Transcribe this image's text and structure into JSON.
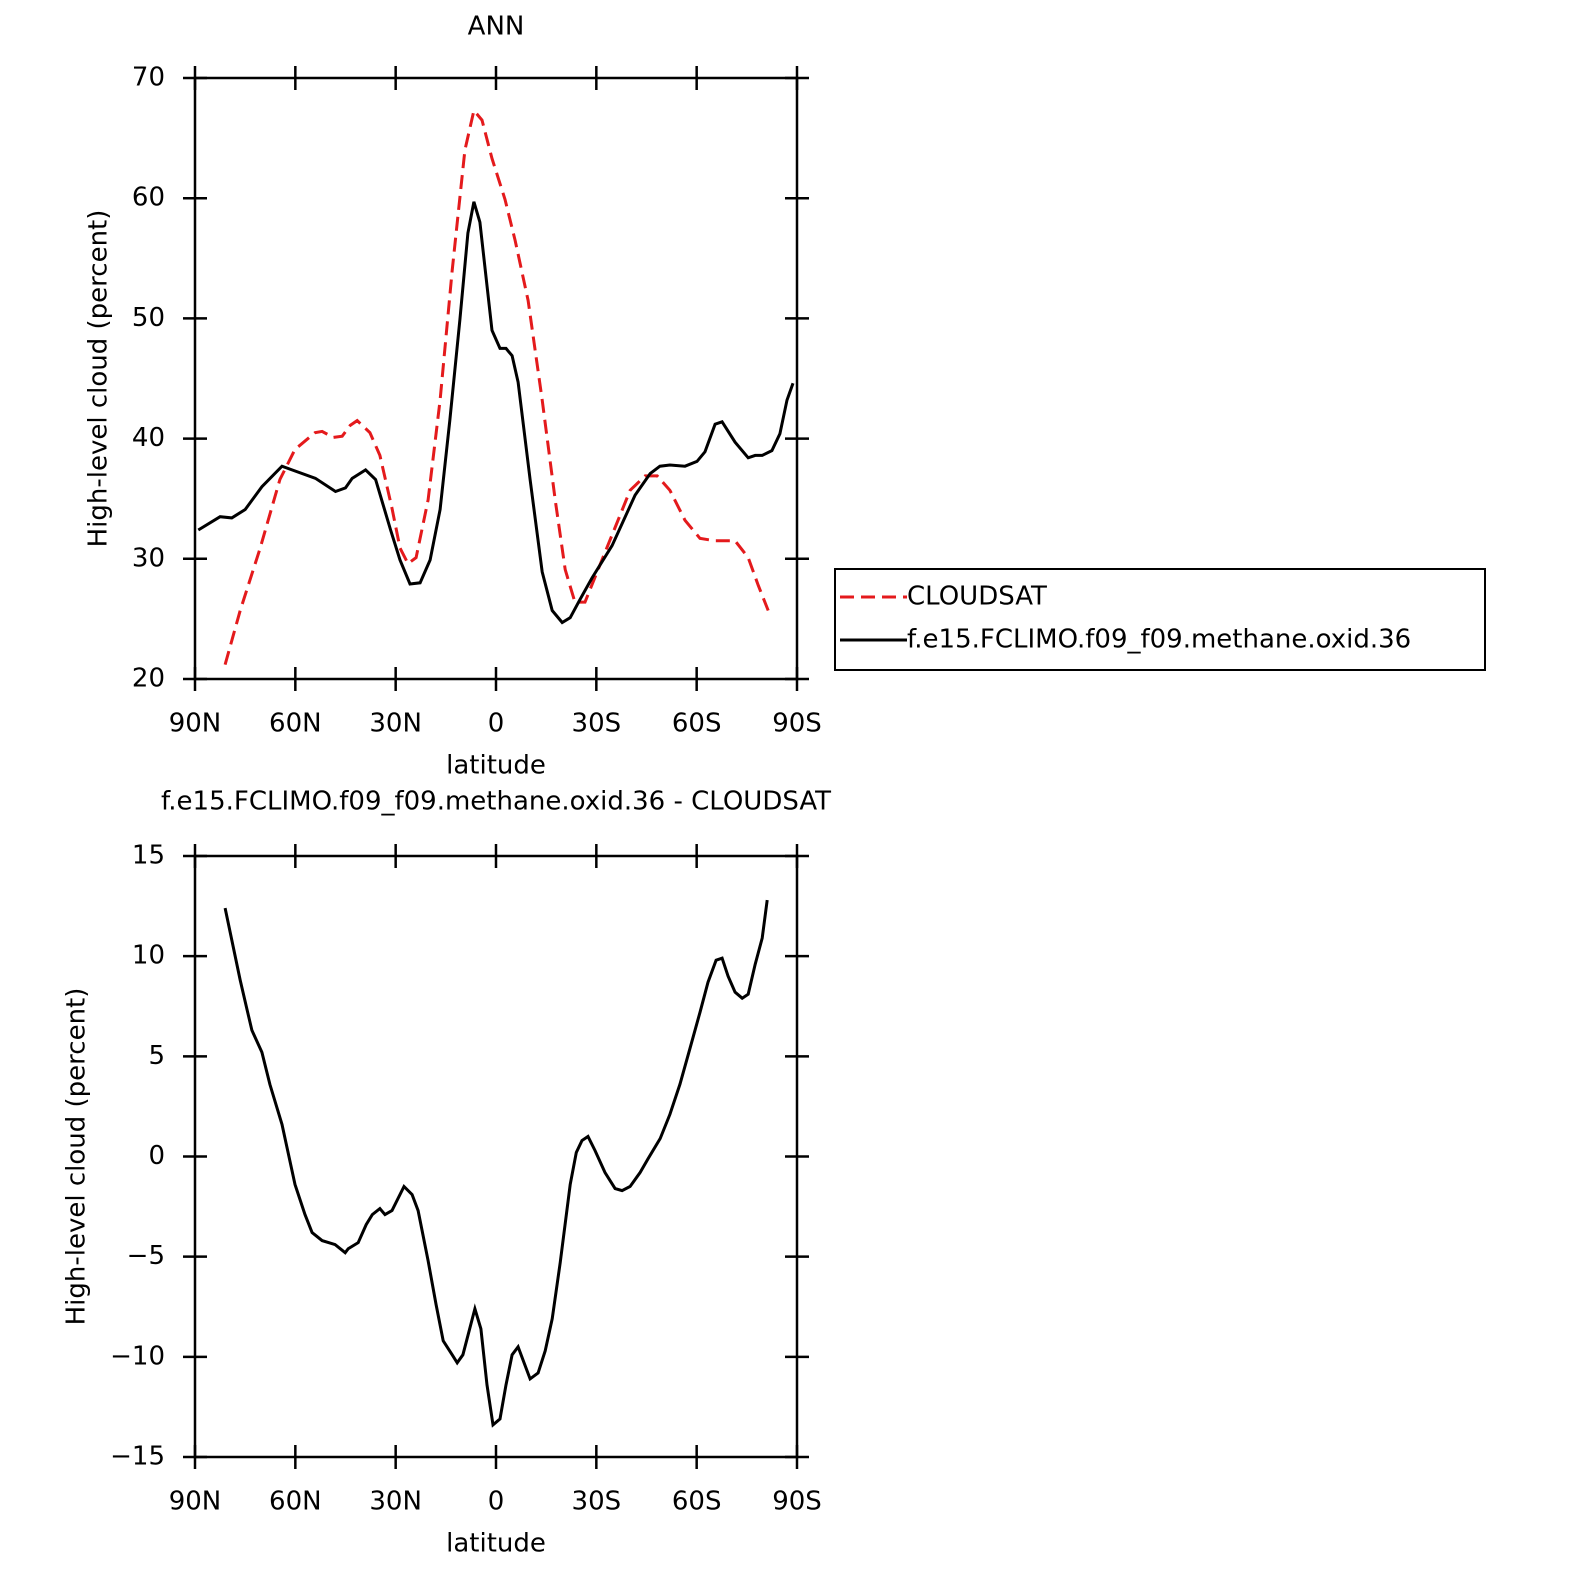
{
  "chart_data": [
    {
      "type": "line",
      "title": "ANN",
      "xlabel": "latitude",
      "ylabel": "High-level cloud (percent)",
      "xlim": [
        90,
        -90
      ],
      "xticks": [
        {
          "value": 90,
          "label": "90N"
        },
        {
          "value": 60,
          "label": "60N"
        },
        {
          "value": 30,
          "label": "30N"
        },
        0,
        {
          "value": -30,
          "label": "30S"
        },
        {
          "value": -60,
          "label": "60S"
        },
        {
          "value": -90,
          "label": "90S"
        }
      ],
      "ylim": [
        20,
        70
      ],
      "yticks": [
        20,
        30,
        40,
        50,
        60,
        70
      ],
      "legend": "right",
      "series": [
        {
          "name": "CLOUDSAT",
          "color": "#e41a1c",
          "line_style": "dashed",
          "x": [
            81,
            76.5,
            70.5,
            64.6,
            60.1,
            54.1,
            52,
            48.7,
            46,
            43.6,
            41.5,
            37.7,
            34.7,
            31.1,
            28.7,
            26.3,
            23.9,
            20.3,
            16.7,
            13.1,
            9.3,
            6.6,
            4.2,
            1.2,
            -2.7,
            -5.7,
            -9.6,
            -13.8,
            -17.7,
            -20.7,
            -23.6,
            -26.6,
            -31.1,
            -35.6,
            -40.1,
            -44.6,
            -48.2,
            -52,
            -56.5,
            -61,
            -65.5,
            -71.5,
            -75.4,
            -78.4,
            -81.4
          ],
          "values": [
            21.2,
            25.7,
            30.9,
            36.6,
            39.1,
            40.5,
            40.6,
            40.1,
            40.2,
            41.1,
            41.5,
            40.5,
            38.6,
            34.2,
            30.9,
            29.6,
            30.1,
            34.9,
            43.2,
            54.0,
            64.0,
            67.3,
            66.5,
            63.3,
            59.9,
            56.5,
            51.5,
            43.2,
            34.9,
            29.1,
            26.4,
            26.4,
            29.5,
            32.6,
            35.7,
            36.9,
            36.9,
            35.7,
            33.2,
            31.7,
            31.5,
            31.5,
            30.1,
            27.8,
            25.7
          ]
        },
        {
          "name": "f.e15.FCLIMO.f09_f09.methane.oxid.36",
          "color": "#000000",
          "line_style": "solid",
          "x": [
            89,
            82.5,
            79,
            75,
            70,
            64,
            61,
            54,
            48,
            45,
            43,
            39,
            36,
            31.5,
            28.7,
            25.7,
            22.7,
            19.7,
            16.7,
            13.8,
            10.8,
            8.4,
            6.6,
            4.8,
            1.2,
            -1.2,
            -3,
            -4.8,
            -6.6,
            -10.2,
            -13.8,
            -16.8,
            -19.8,
            -22.2,
            -25.1,
            -28.7,
            -34.7,
            -41.6,
            -46.1,
            -49,
            -52,
            -56.5,
            -60.1,
            -62.5,
            -65.5,
            -67.6,
            -71.5,
            -75.4,
            -77.5,
            -79.6,
            -82.5,
            -84.9,
            -87,
            -88.8
          ],
          "values": [
            32.4,
            33.5,
            33.4,
            34.1,
            36.0,
            37.7,
            37.4,
            36.7,
            35.6,
            35.9,
            36.7,
            37.4,
            36.6,
            32.4,
            29.9,
            27.9,
            28.0,
            29.9,
            34.1,
            41.5,
            49.9,
            57.1,
            59.7,
            58.0,
            49.0,
            47.5,
            47.5,
            46.9,
            44.7,
            36.6,
            28.9,
            25.7,
            24.7,
            25.1,
            26.6,
            28.4,
            31.1,
            35.3,
            37.1,
            37.7,
            37.8,
            37.7,
            38.1,
            38.9,
            41.2,
            41.4,
            39.7,
            38.4,
            38.6,
            38.6,
            39.0,
            40.4,
            43.2,
            44.6
          ]
        }
      ]
    },
    {
      "type": "line",
      "title": "f.e15.FCLIMO.f09_f09.methane.oxid.36 - CLOUDSAT",
      "xlabel": "latitude",
      "ylabel": "High-level cloud (percent)",
      "xlim": [
        90,
        -90
      ],
      "xticks": [
        {
          "value": 90,
          "label": "90N"
        },
        {
          "value": 60,
          "label": "60N"
        },
        {
          "value": 30,
          "label": "30N"
        },
        0,
        {
          "value": -30,
          "label": "30S"
        },
        {
          "value": -60,
          "label": "60S"
        },
        {
          "value": -90,
          "label": "90S"
        }
      ],
      "ylim": [
        -15,
        15
      ],
      "yticks": [
        {
          "value": -15,
          "label": "−15"
        },
        {
          "value": -10,
          "label": "−10"
        },
        {
          "value": -5,
          "label": "−5"
        },
        0,
        5,
        10,
        15
      ],
      "series": [
        {
          "color": "#000000",
          "line_style": "solid",
          "x": [
            81,
            76.5,
            74.4,
            73,
            70,
            67.6,
            64,
            60.1,
            57.1,
            55,
            52,
            48.1,
            45.1,
            44.2,
            41.2,
            38.8,
            37,
            34.7,
            33.2,
            31.1,
            27.5,
            25.1,
            23.3,
            20.3,
            17.9,
            15.8,
            13.1,
            11.6,
            9.9,
            6.3,
            4.5,
            2.7,
            0.9,
            -1.2,
            -3,
            -4.8,
            -6.6,
            -10.2,
            -12.6,
            -14.7,
            -16.8,
            -19.2,
            -22.2,
            -24,
            -25.7,
            -27.5,
            -29.6,
            -32.6,
            -35.6,
            -37.7,
            -40.1,
            -43.1,
            -45.5,
            -49.1,
            -52,
            -55,
            -58,
            -61,
            -63.4,
            -65.8,
            -67.6,
            -69.4,
            -71.5,
            -73.6,
            -75.4,
            -77.5,
            -79.6,
            -81.1
          ],
          "values": [
            12.4,
            8.8,
            7.3,
            6.3,
            5.2,
            3.6,
            1.6,
            -1.4,
            -2.9,
            -3.8,
            -4.2,
            -4.4,
            -4.8,
            -4.6,
            -4.3,
            -3.4,
            -2.9,
            -2.6,
            -2.9,
            -2.7,
            -1.5,
            -1.9,
            -2.7,
            -5.2,
            -7.4,
            -9.2,
            -9.9,
            -10.3,
            -9.9,
            -7.6,
            -8.6,
            -11.4,
            -13.4,
            -13.1,
            -11.4,
            -9.9,
            -9.5,
            -11.1,
            -10.8,
            -9.7,
            -8.1,
            -5.3,
            -1.4,
            0.2,
            0.8,
            1.0,
            0.3,
            -0.8,
            -1.6,
            -1.7,
            -1.5,
            -0.8,
            -0.1,
            0.9,
            2.1,
            3.6,
            5.4,
            7.2,
            8.7,
            9.8,
            9.9,
            9.0,
            8.2,
            7.9,
            8.1,
            9.6,
            10.9,
            12.8
          ]
        }
      ]
    }
  ]
}
